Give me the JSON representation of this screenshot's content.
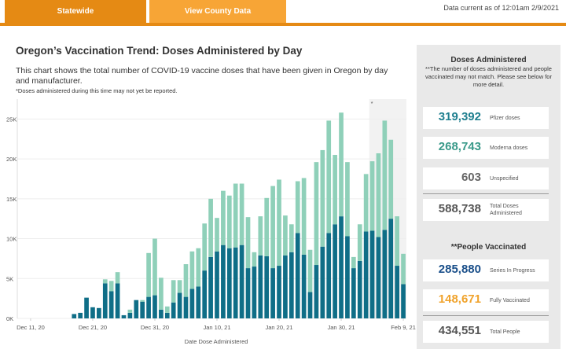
{
  "header": {
    "tabs": [
      {
        "label": "Statewide"
      },
      {
        "label": "View County Data"
      }
    ],
    "data_current": "Data current as of 12:01am 2/9/2021",
    "accent_color": "#e58a14"
  },
  "main": {
    "title": "Oregon’s Vaccination Trend: Doses Administered by Day",
    "description": "This chart shows the total number of COVID-19 vaccine doses that have been given in Oregon by day and manufacturer.",
    "note": "*Doses administered during this time may not yet be reported."
  },
  "chart_data": {
    "type": "bar",
    "stacked": true,
    "xlabel": "Date Dose Administered",
    "ylabel": "",
    "ylim": [
      0,
      27500
    ],
    "yticks": [
      "0K",
      "5K",
      "10K",
      "15K",
      "20K",
      "25K"
    ],
    "ytick_values": [
      0,
      5000,
      10000,
      15000,
      20000,
      25000
    ],
    "xtick_labels": [
      "Dec 11, 20",
      "Dec 21, 20",
      "Dec 31, 20",
      "Jan 10, 21",
      "Jan 20, 21",
      "Jan 30, 21",
      "Feb 9, 21"
    ],
    "categories": [
      "Dec 11",
      "Dec 12",
      "Dec 13",
      "Dec 14",
      "Dec 15",
      "Dec 16",
      "Dec 17",
      "Dec 18",
      "Dec 19",
      "Dec 20",
      "Dec 21",
      "Dec 22",
      "Dec 23",
      "Dec 24",
      "Dec 25",
      "Dec 26",
      "Dec 27",
      "Dec 28",
      "Dec 29",
      "Dec 30",
      "Dec 31",
      "Jan 1",
      "Jan 2",
      "Jan 3",
      "Jan 4",
      "Jan 5",
      "Jan 6",
      "Jan 7",
      "Jan 8",
      "Jan 9",
      "Jan 10",
      "Jan 11",
      "Jan 12",
      "Jan 13",
      "Jan 14",
      "Jan 15",
      "Jan 16",
      "Jan 17",
      "Jan 18",
      "Jan 19",
      "Jan 20",
      "Jan 21",
      "Jan 22",
      "Jan 23",
      "Jan 24",
      "Jan 25",
      "Jan 26",
      "Jan 27",
      "Jan 28",
      "Jan 29",
      "Jan 30",
      "Jan 31",
      "Feb 1",
      "Feb 2",
      "Feb 3",
      "Feb 4",
      "Feb 5",
      "Feb 6",
      "Feb 7",
      "Feb 8",
      "Feb 9"
    ],
    "series": [
      {
        "name": "Pfizer doses",
        "color": "#0f6e87",
        "values": [
          0,
          0,
          0,
          0,
          0,
          0,
          0,
          550,
          700,
          2600,
          1400,
          1300,
          4400,
          3400,
          4400,
          400,
          700,
          2300,
          2100,
          2700,
          2900,
          1100,
          700,
          2000,
          3200,
          2700,
          3700,
          4000,
          6000,
          7700,
          8400,
          9200,
          8800,
          8900,
          9200,
          6300,
          6500,
          7900,
          7800,
          6300,
          6600,
          7900,
          8300,
          10700,
          8000,
          3300,
          6700,
          9000,
          10700,
          11800,
          12800,
          10300,
          6300,
          7200,
          10900,
          11000,
          10200,
          11100,
          12500,
          6600,
          4300
        ]
      },
      {
        "name": "Moderna doses",
        "color": "#8fd0b9",
        "values": [
          0,
          0,
          0,
          0,
          0,
          0,
          0,
          0,
          0,
          0,
          0,
          0,
          500,
          1300,
          1400,
          0,
          400,
          0,
          200,
          5500,
          7100,
          4000,
          800,
          2800,
          1600,
          4100,
          4700,
          4800,
          5900,
          7300,
          4200,
          6800,
          6600,
          8000,
          7700,
          6400,
          1800,
          4900,
          7300,
          10300,
          10800,
          5000,
          3500,
          6500,
          9600,
          5300,
          12900,
          12100,
          14100,
          8700,
          13000,
          9300,
          1400,
          4600,
          7200,
          8700,
          10500,
          13700,
          9900,
          6200,
          3800
        ]
      }
    ]
  },
  "panel": {
    "doses_heading": "Doses Administered",
    "doses_note": "**The number of doses administered and people vaccinated may not match. Please see below for more detail.",
    "doses": [
      {
        "value": "319,392",
        "label": "Pfizer doses",
        "color": "#1f7f8f"
      },
      {
        "value": "268,743",
        "label": "Moderna doses",
        "color": "#3a9a8a"
      },
      {
        "value": "603",
        "label": "Unspecified",
        "color": "#666666"
      }
    ],
    "total_doses": {
      "value": "588,738",
      "label": "Total Doses Administered",
      "color": "#555555"
    },
    "people_heading": "**People Vaccinated",
    "people": [
      {
        "value": "285,880",
        "label": "Series In Progress",
        "color": "#1a4f8a"
      },
      {
        "value": "148,671",
        "label": "Fully Vaccinated",
        "color": "#f0a32c"
      }
    ],
    "total_people": {
      "value": "434,551",
      "label": "Total People",
      "color": "#555555"
    }
  }
}
